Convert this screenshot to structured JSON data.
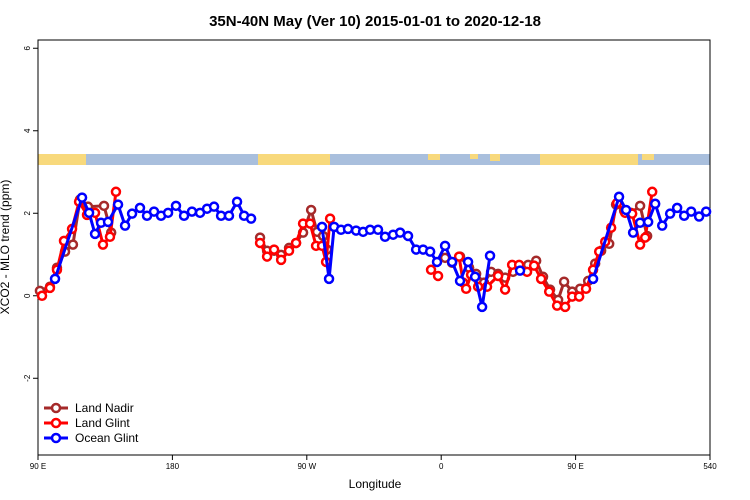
{
  "chart_data": {
    "type": "line",
    "title": "35N-40N May (Ver 10)   2015-01-01 to 2020-12-18",
    "x_label": "Longitude",
    "y_label": "XCO2 - MLO trend (ppm)",
    "xlim": [
      90,
      540
    ],
    "ylim": [
      -3.86,
      6.2
    ],
    "xticks": [
      {
        "value": 90,
        "label": "90 E"
      },
      180,
      {
        "value": 270,
        "label": "90 W"
      },
      {
        "value": 360,
        "label": "0"
      },
      {
        "value": 450,
        "label": "90 E"
      },
      540
    ],
    "yticks": [
      -2,
      0,
      2,
      4,
      6
    ],
    "legend": "bottom-left",
    "series": [
      {
        "name": "Land Nadir",
        "color": "#a52a2a",
        "x": [
          91.3,
          98.0,
          102.7,
          108.1,
          113.4,
          118.1,
          123.5,
          134.2,
          139.0,
          null,
          238.7,
          243.4,
          248.1,
          252.8,
          258.1,
          262.8,
          267.5,
          272.9,
          276.9,
          280.9,
          283.6,
          null,
          362.6,
          367.3,
          372.6,
          378.7,
          383.4,
          388.7,
          393.4,
          398.1,
          402.8,
          408.1,
          412.8,
          418.2,
          423.6,
          428.2,
          432.9,
          438.3,
          442.3,
          447.7,
          453.0,
          458.4,
          463.1,
          467.1,
          472.5,
          477.1,
          482.5,
          487.2,
          493.2,
          497.9
        ],
        "values": [
          0.12,
          0.22,
          0.68,
          1.07,
          1.24,
          2.33,
          2.16,
          2.18,
          1.53,
          null,
          1.41,
          1.09,
          1.09,
          0.99,
          1.16,
          1.28,
          1.53,
          2.08,
          1.55,
          1.45,
          1.12,
          null,
          0.92,
          0.8,
          0.95,
          0.68,
          0.53,
          0.32,
          0.58,
          0.53,
          0.44,
          0.58,
          0.68,
          0.75,
          0.85,
          0.46,
          0.15,
          -0.1,
          0.34,
          0.1,
          0.17,
          0.36,
          0.78,
          1.09,
          1.26,
          2.21,
          2.06,
          2.01,
          2.18,
          1.45
        ]
      },
      {
        "name": "Land Glint",
        "color": "#ff0000",
        "x": [
          92.7,
          98.0,
          102.7,
          107.4,
          112.8,
          117.5,
          122.8,
          128.2,
          133.5,
          138.2,
          142.2,
          null,
          238.7,
          243.4,
          248.1,
          252.8,
          258.1,
          262.8,
          267.5,
          272.2,
          276.2,
          280.2,
          282.9,
          285.6,
          null,
          353.2,
          357.9,
          null,
          372.0,
          374.7,
          376.7,
          380.0,
          384.7,
          390.7,
          398.1,
          402.8,
          407.5,
          412.2,
          417.5,
          422.2,
          426.9,
          432.3,
          437.6,
          443.0,
          447.7,
          452.4,
          457.0,
          461.7,
          465.8,
          469.8,
          473.8,
          477.8,
          483.2,
          487.9,
          493.2,
          496.6,
          501.3
        ],
        "values": [
          0.0,
          0.19,
          0.63,
          1.33,
          1.62,
          2.28,
          1.96,
          2.01,
          1.24,
          1.43,
          2.52,
          null,
          1.28,
          0.95,
          1.12,
          0.87,
          1.09,
          1.28,
          1.75,
          1.75,
          1.21,
          1.21,
          0.82,
          1.87,
          null,
          0.63,
          0.48,
          null,
          0.95,
          0.32,
          0.17,
          0.51,
          0.22,
          0.22,
          0.48,
          0.15,
          0.75,
          0.75,
          0.58,
          0.73,
          0.41,
          0.1,
          -0.24,
          -0.27,
          -0.02,
          -0.02,
          0.17,
          0.63,
          1.07,
          1.31,
          1.65,
          2.25,
          2.01,
          1.99,
          1.24,
          1.41,
          2.52
        ]
      },
      {
        "name": "Ocean Glint",
        "color": "#0000ff",
        "x": [
          101.4,
          119.5,
          124.2,
          128.2,
          132.2,
          136.9,
          143.6,
          148.3,
          153.0,
          158.3,
          163.0,
          167.7,
          172.4,
          177.1,
          182.4,
          187.8,
          193.1,
          198.5,
          203.2,
          207.9,
          212.6,
          217.9,
          223.3,
          228.0,
          232.7,
          null,
          280.2,
          284.9,
          288.3,
          292.9,
          297.6,
          303.0,
          307.7,
          312.4,
          317.7,
          322.4,
          327.8,
          332.5,
          337.8,
          343.2,
          347.9,
          352.6,
          357.2,
          362.6,
          367.3,
          372.6,
          378.0,
          382.7,
          387.4,
          392.7,
          null,
          412.8,
          null,
          461.7,
          479.1,
          483.8,
          488.5,
          493.2,
          498.6,
          503.3,
          508.0,
          513.3,
          518.0,
          522.7,
          527.4,
          532.7,
          537.4
        ],
        "values": [
          0.41,
          2.38,
          2.01,
          1.5,
          1.77,
          1.79,
          2.21,
          1.7,
          1.99,
          2.13,
          1.94,
          2.04,
          1.94,
          2.01,
          2.18,
          1.94,
          2.04,
          2.01,
          2.11,
          2.16,
          1.94,
          1.94,
          2.28,
          1.94,
          1.87,
          null,
          1.67,
          0.41,
          1.67,
          1.6,
          1.62,
          1.58,
          1.55,
          1.6,
          1.6,
          1.43,
          1.48,
          1.53,
          1.45,
          1.12,
          1.12,
          1.07,
          0.82,
          1.21,
          0.82,
          0.36,
          0.82,
          0.46,
          -0.27,
          0.97,
          null,
          0.61,
          null,
          0.41,
          2.4,
          2.08,
          1.53,
          1.77,
          1.79,
          2.23,
          1.7,
          1.99,
          2.13,
          1.94,
          2.04,
          1.92,
          2.04
        ]
      }
    ]
  }
}
